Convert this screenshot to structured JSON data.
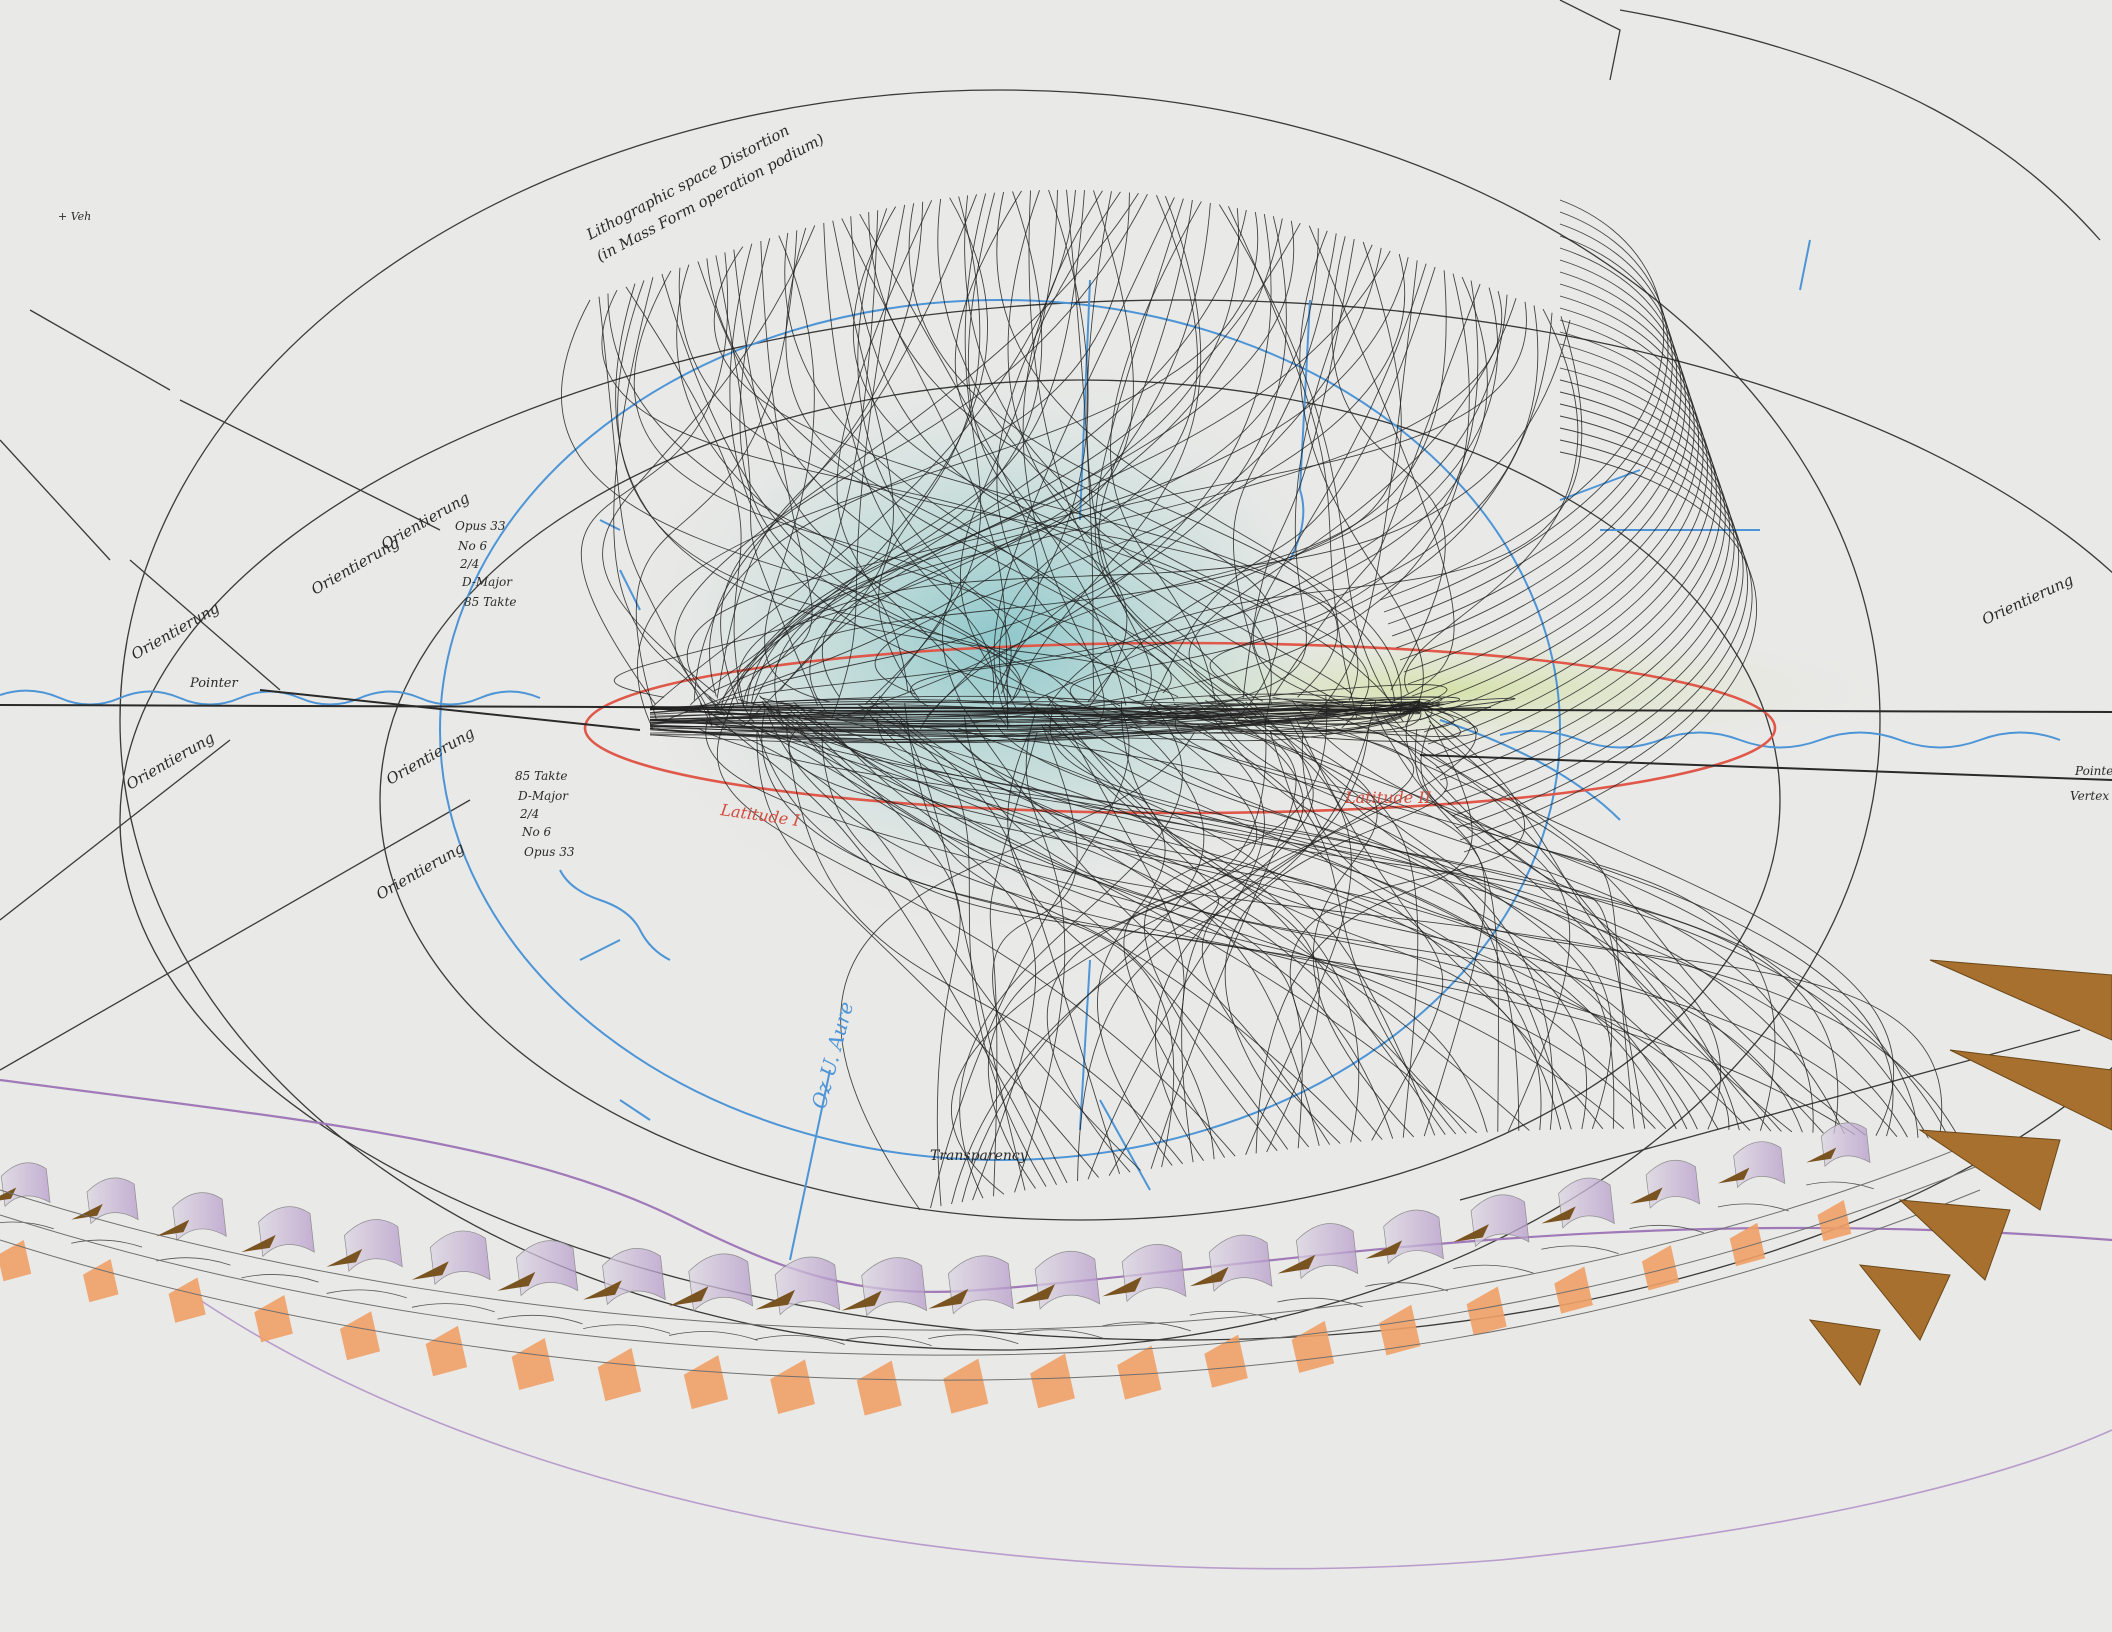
{
  "artwork": {
    "colors": {
      "paper": "#e9e9e7",
      "graphite": "#2a2a2a",
      "blue": "#4d95d6",
      "red": "#e0584a",
      "purple": "#a07ab8",
      "orange": "#f0a066",
      "bronze": "#a8702e",
      "green_wash": "#d6e3a0",
      "teal_wash": "#7cc4c8"
    },
    "labels": {
      "top_note_1": "Lithographic space Distortion",
      "top_note_2": "(in Mass Form operation podium)",
      "small_note": "+ Veh",
      "left_pointer": "Pointer",
      "red_left": "Latitude I",
      "red_right": "Latitude II",
      "blue_vertical": "Oz U. Aure",
      "bottom_center": "Transparency"
    },
    "orientation_labels": [
      "Orientierung",
      "Orientierung",
      "Orientierung",
      "Orientierung",
      "Orientierung",
      "Orientierung",
      "Orientierung"
    ],
    "left_stack": [
      "Opus 33",
      "No 6",
      "2/4",
      "D-Major",
      "85 Takte"
    ],
    "left_stack_2": [
      "85 Takte",
      "D-Major",
      "2/4",
      "No 6",
      "Opus 33"
    ],
    "right_labels": [
      "Pointer",
      "Vertex"
    ]
  }
}
